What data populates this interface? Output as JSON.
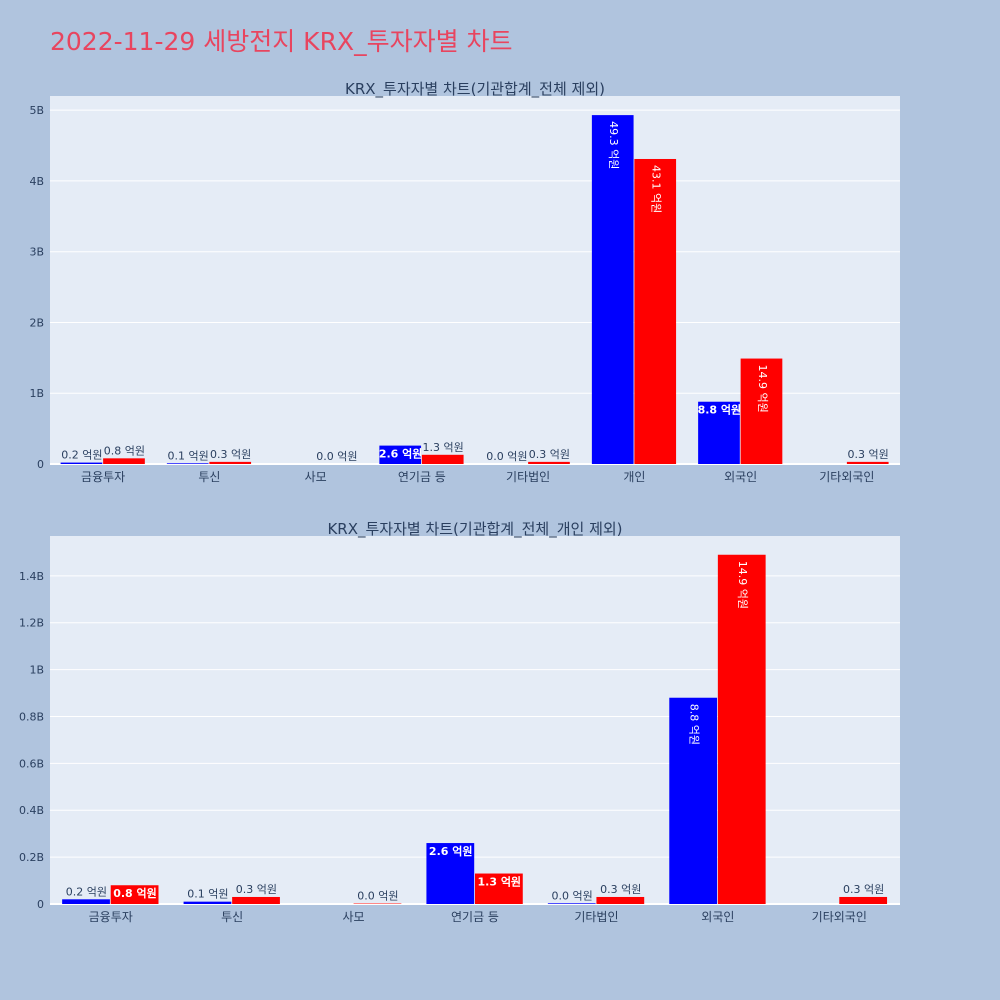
{
  "page": {
    "title": "2022-11-29 세방전지 KRX_투자자별 차트"
  },
  "colors": {
    "buy": "#0000ff",
    "sell": "#ff0000",
    "background": "#b0c4de",
    "plot_bg": "#e5ecf6",
    "title": "#e8455f"
  },
  "chart_data": [
    {
      "type": "bar",
      "title": "KRX_투자자별 차트(기관합계_전체 제외)",
      "categories": [
        "금융투자",
        "투신",
        "사모",
        "연기금 등",
        "기타법인",
        "개인",
        "외국인",
        "기타외국인"
      ],
      "series": [
        {
          "color": "#0000ff",
          "values": [
            0.02,
            0.01,
            0,
            0.26,
            0.003,
            4.93,
            0.88,
            0
          ],
          "labels": [
            "0.2 억원",
            "0.1 억원",
            "",
            "2.6 억원",
            "0.0 억원",
            "49.3 억원",
            "8.8 억원",
            ""
          ]
        },
        {
          "color": "#ff0000",
          "values": [
            0.08,
            0.03,
            0.002,
            0.13,
            0.03,
            4.31,
            1.49,
            0.03
          ],
          "labels": [
            "0.8 억원",
            "0.3 억원",
            "0.0 억원",
            "1.3 억원",
            "0.3 억원",
            "43.1 억원",
            "14.9 억원",
            "0.3 억원"
          ]
        }
      ],
      "ylim": [
        0,
        5.2
      ],
      "yticks": [
        0,
        1,
        2,
        3,
        4,
        5
      ],
      "ytick_labels": [
        "0",
        "1B",
        "2B",
        "3B",
        "4B",
        "5B"
      ],
      "grid": true
    },
    {
      "type": "bar",
      "title": "KRX_투자자별 차트(기관합계_전체_개인 제외)",
      "categories": [
        "금융투자",
        "투신",
        "사모",
        "연기금 등",
        "기타법인",
        "외국인",
        "기타외국인"
      ],
      "series": [
        {
          "color": "#0000ff",
          "values": [
            0.02,
            0.01,
            0,
            0.26,
            0.003,
            0.88,
            0
          ],
          "labels": [
            "0.2 억원",
            "0.1 억원",
            "",
            "2.6 억원",
            "0.0 억원",
            "8.8 억원",
            ""
          ]
        },
        {
          "color": "#ff0000",
          "values": [
            0.08,
            0.03,
            0.002,
            0.13,
            0.03,
            1.49,
            0.03
          ],
          "labels": [
            "0.8 억원",
            "0.3 억원",
            "0.0 억원",
            "1.3 억원",
            "0.3 억원",
            "14.9 억원",
            "0.3 억원"
          ]
        }
      ],
      "ylim": [
        0,
        1.57
      ],
      "yticks": [
        0,
        0.2,
        0.4,
        0.6,
        0.8,
        1.0,
        1.2,
        1.4
      ],
      "ytick_labels": [
        "0",
        "0.2B",
        "0.4B",
        "0.6B",
        "0.8B",
        "1B",
        "1.2B",
        "1.4B"
      ],
      "grid": true
    }
  ]
}
